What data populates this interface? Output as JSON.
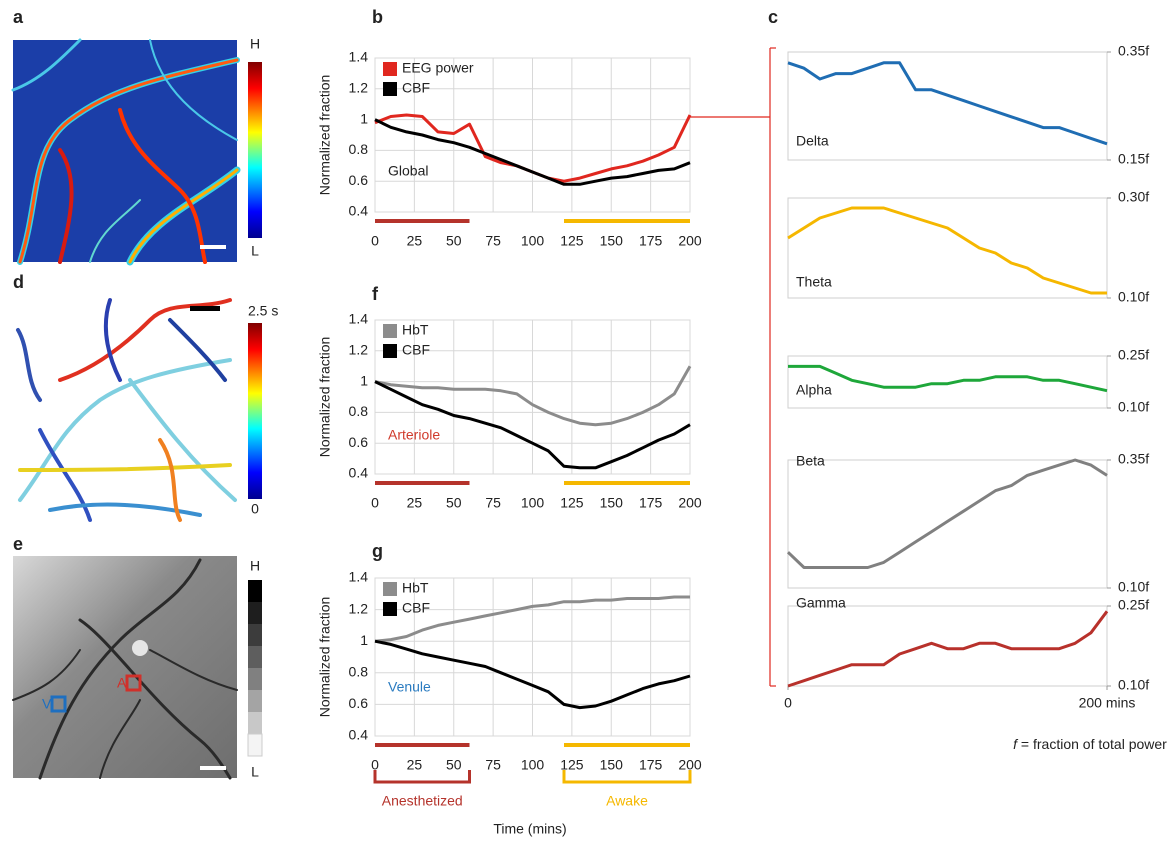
{
  "panels": [
    "a",
    "b",
    "c",
    "d",
    "e",
    "f",
    "g"
  ],
  "images": [
    {
      "colorbar": [
        "H",
        "L"
      ]
    },
    {
      "colorbar": [
        "2.5 s",
        "0"
      ]
    },
    {
      "colorbar": [
        "H",
        "L"
      ],
      "roi_labels": [
        "V",
        "A"
      ]
    }
  ],
  "periods": [
    {
      "name": "Anesthetized",
      "start": 0,
      "end": 60,
      "color": "#b5332b"
    },
    {
      "name": "Awake",
      "start": 120,
      "end": 200,
      "color": "#f5b800"
    }
  ],
  "x_label": "Time (mins)",
  "footnote": {
    "symbol": "f",
    "text": "= fraction of total power"
  },
  "chart_data": [
    {
      "type": "line",
      "ylabel": "Normalized fraction",
      "annotation": "Global",
      "annotation_color": "#222",
      "x": [
        0,
        10,
        20,
        30,
        40,
        50,
        60,
        70,
        80,
        90,
        100,
        110,
        120,
        130,
        140,
        150,
        160,
        170,
        180,
        190,
        200
      ],
      "series": [
        {
          "name": "EEG power",
          "color": "#e0271f",
          "values": [
            0.98,
            1.02,
            1.03,
            1.02,
            0.92,
            0.91,
            0.97,
            0.76,
            0.72,
            0.7,
            0.66,
            0.62,
            0.6,
            0.62,
            0.65,
            0.68,
            0.7,
            0.73,
            0.77,
            0.82,
            1.03
          ]
        },
        {
          "name": "CBF",
          "color": "#000000",
          "values": [
            1.0,
            0.95,
            0.92,
            0.9,
            0.87,
            0.85,
            0.82,
            0.78,
            0.74,
            0.7,
            0.66,
            0.62,
            0.58,
            0.58,
            0.6,
            0.62,
            0.63,
            0.65,
            0.67,
            0.68,
            0.72
          ]
        }
      ],
      "xlim": [
        0,
        200
      ],
      "ylim": [
        0.4,
        1.4
      ],
      "xticks": [
        0,
        25,
        50,
        75,
        100,
        125,
        150,
        175,
        200
      ],
      "yticks": [
        0.4,
        0.6,
        0.8,
        1,
        1.2,
        1.4
      ],
      "grid": true
    },
    {
      "type": "line",
      "ylabel": "Normalized fraction",
      "annotation": "Arteriole",
      "annotation_color": "#d03a2b",
      "x": [
        0,
        10,
        20,
        30,
        40,
        50,
        60,
        70,
        80,
        90,
        100,
        110,
        120,
        130,
        140,
        150,
        160,
        170,
        180,
        190,
        200
      ],
      "series": [
        {
          "name": "HbT",
          "color": "#8c8c8c",
          "values": [
            1.0,
            0.98,
            0.97,
            0.96,
            0.96,
            0.95,
            0.95,
            0.95,
            0.94,
            0.92,
            0.85,
            0.8,
            0.76,
            0.73,
            0.72,
            0.73,
            0.76,
            0.8,
            0.85,
            0.92,
            1.1
          ]
        },
        {
          "name": "CBF",
          "color": "#000000",
          "values": [
            1.0,
            0.95,
            0.9,
            0.85,
            0.82,
            0.78,
            0.76,
            0.73,
            0.7,
            0.65,
            0.6,
            0.55,
            0.45,
            0.44,
            0.44,
            0.48,
            0.52,
            0.57,
            0.62,
            0.66,
            0.72
          ]
        }
      ],
      "xlim": [
        0,
        200
      ],
      "ylim": [
        0.4,
        1.4
      ],
      "xticks": [
        0,
        25,
        50,
        75,
        100,
        125,
        150,
        175,
        200
      ],
      "yticks": [
        0.4,
        0.6,
        0.8,
        1,
        1.2,
        1.4
      ],
      "grid": true
    },
    {
      "type": "line",
      "ylabel": "Normalized fraction",
      "annotation": "Venule",
      "annotation_color": "#2a7bc0",
      "x": [
        0,
        10,
        20,
        30,
        40,
        50,
        60,
        70,
        80,
        90,
        100,
        110,
        120,
        130,
        140,
        150,
        160,
        170,
        180,
        190,
        200
      ],
      "series": [
        {
          "name": "HbT",
          "color": "#8c8c8c",
          "values": [
            1.0,
            1.01,
            1.03,
            1.07,
            1.1,
            1.12,
            1.14,
            1.16,
            1.18,
            1.2,
            1.22,
            1.23,
            1.25,
            1.25,
            1.26,
            1.26,
            1.27,
            1.27,
            1.27,
            1.28,
            1.28
          ]
        },
        {
          "name": "CBF",
          "color": "#000000",
          "values": [
            1.0,
            0.98,
            0.95,
            0.92,
            0.9,
            0.88,
            0.86,
            0.84,
            0.8,
            0.76,
            0.72,
            0.68,
            0.6,
            0.58,
            0.59,
            0.62,
            0.66,
            0.7,
            0.73,
            0.75,
            0.78
          ]
        }
      ],
      "xlim": [
        0,
        200
      ],
      "ylim": [
        0.4,
        1.4
      ],
      "xticks": [
        0,
        25,
        50,
        75,
        100,
        125,
        150,
        175,
        200
      ],
      "yticks": [
        0.4,
        0.6,
        0.8,
        1,
        1.2,
        1.4
      ],
      "grid": true
    },
    {
      "type": "line",
      "label": "Delta",
      "x": [
        0,
        10,
        20,
        30,
        40,
        50,
        60,
        70,
        80,
        90,
        100,
        110,
        120,
        130,
        140,
        150,
        160,
        170,
        180,
        190,
        200
      ],
      "series": [
        {
          "color": "#1f6db3",
          "values": [
            0.33,
            0.32,
            0.3,
            0.31,
            0.31,
            0.32,
            0.33,
            0.33,
            0.28,
            0.28,
            0.27,
            0.26,
            0.25,
            0.24,
            0.23,
            0.22,
            0.21,
            0.21,
            0.2,
            0.19,
            0.18
          ]
        }
      ],
      "xlim": [
        0,
        200
      ],
      "ylim": [
        0.15,
        0.35
      ],
      "yticks": [
        {
          "value": 0.15,
          "label": "0.15f"
        },
        {
          "value": 0.35,
          "label": "0.35f"
        }
      ]
    },
    {
      "type": "line",
      "label": "Theta",
      "x": [
        0,
        10,
        20,
        30,
        40,
        50,
        60,
        70,
        80,
        90,
        100,
        110,
        120,
        130,
        140,
        150,
        160,
        170,
        180,
        190,
        200
      ],
      "series": [
        {
          "color": "#f5b700",
          "values": [
            0.22,
            0.24,
            0.26,
            0.27,
            0.28,
            0.28,
            0.28,
            0.27,
            0.26,
            0.25,
            0.24,
            0.22,
            0.2,
            0.19,
            0.17,
            0.16,
            0.14,
            0.13,
            0.12,
            0.11,
            0.11
          ]
        }
      ],
      "xlim": [
        0,
        200
      ],
      "ylim": [
        0.1,
        0.3
      ],
      "yticks": [
        {
          "value": 0.1,
          "label": "0.10f"
        },
        {
          "value": 0.3,
          "label": "0.30f"
        }
      ]
    },
    {
      "type": "line",
      "label": "Alpha",
      "x": [
        0,
        10,
        20,
        30,
        40,
        50,
        60,
        70,
        80,
        90,
        100,
        110,
        120,
        130,
        140,
        150,
        160,
        170,
        180,
        190,
        200
      ],
      "series": [
        {
          "color": "#1ea73a",
          "values": [
            0.22,
            0.22,
            0.22,
            0.2,
            0.18,
            0.17,
            0.16,
            0.16,
            0.16,
            0.17,
            0.17,
            0.18,
            0.18,
            0.19,
            0.19,
            0.19,
            0.18,
            0.18,
            0.17,
            0.16,
            0.15
          ]
        }
      ],
      "xlim": [
        0,
        200
      ],
      "ylim": [
        0.1,
        0.25
      ],
      "yticks": [
        {
          "value": 0.1,
          "label": "0.10f"
        },
        {
          "value": 0.25,
          "label": "0.25f"
        }
      ]
    },
    {
      "type": "line",
      "label": "Beta",
      "x": [
        0,
        10,
        20,
        30,
        40,
        50,
        60,
        70,
        80,
        90,
        100,
        110,
        120,
        130,
        140,
        150,
        160,
        170,
        180,
        190,
        200
      ],
      "series": [
        {
          "color": "#808080",
          "values": [
            0.17,
            0.14,
            0.14,
            0.14,
            0.14,
            0.14,
            0.15,
            0.17,
            0.19,
            0.21,
            0.23,
            0.25,
            0.27,
            0.29,
            0.3,
            0.32,
            0.33,
            0.34,
            0.35,
            0.34,
            0.32
          ]
        }
      ],
      "xlim": [
        0,
        200
      ],
      "ylim": [
        0.1,
        0.35
      ],
      "yticks": [
        {
          "value": 0.1,
          "label": "0.10f"
        },
        {
          "value": 0.35,
          "label": "0.35f"
        }
      ]
    },
    {
      "type": "line",
      "label": "Gamma",
      "x": [
        0,
        10,
        20,
        30,
        40,
        50,
        60,
        70,
        80,
        90,
        100,
        110,
        120,
        130,
        140,
        150,
        160,
        170,
        180,
        190,
        200
      ],
      "series": [
        {
          "color": "#b8312b",
          "values": [
            0.1,
            0.11,
            0.12,
            0.13,
            0.14,
            0.14,
            0.14,
            0.16,
            0.17,
            0.18,
            0.17,
            0.17,
            0.18,
            0.18,
            0.17,
            0.17,
            0.17,
            0.17,
            0.18,
            0.2,
            0.24
          ]
        }
      ],
      "xlim": [
        0,
        200
      ],
      "ylim": [
        0.1,
        0.25
      ],
      "yticks": [
        {
          "value": 0.1,
          "label": "0.10f"
        },
        {
          "value": 0.25,
          "label": "0.25f"
        }
      ],
      "xticks": [
        0,
        {
          "value": 200,
          "label": "200 mins"
        }
      ]
    }
  ]
}
